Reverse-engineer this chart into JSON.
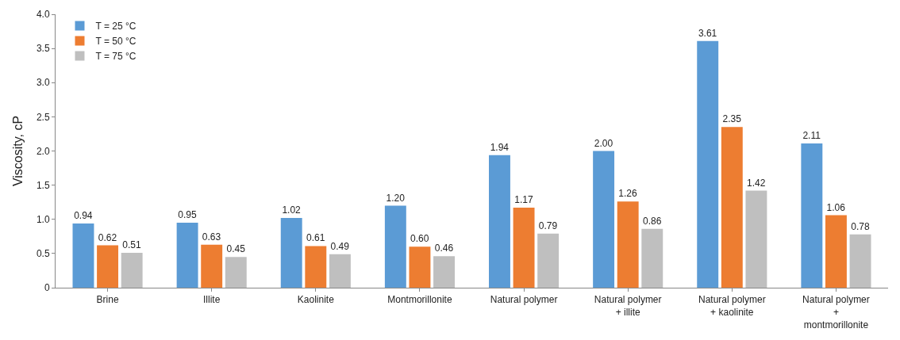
{
  "chart_data": {
    "type": "bar",
    "ylabel": "Viscosity, cP",
    "categories": [
      "Brine",
      "Illite",
      "Kaolinite",
      "Montmorillonite",
      "Natural polymer",
      "Natural polymer + illite",
      "Natural polymer + kaolinite",
      "Natural polymer + montmorillonite"
    ],
    "series": [
      {
        "name": "T = 25 °C",
        "color": "#5b9bd5",
        "values": [
          0.94,
          0.95,
          1.02,
          1.2,
          1.94,
          2.0,
          3.61,
          2.11
        ],
        "value_labels": [
          "0.94",
          "0.95",
          "1.02",
          "1.20",
          "1.94",
          "2.00",
          "3.61",
          "2.11"
        ]
      },
      {
        "name": "T = 50 °C",
        "color": "#ed7d31",
        "values": [
          0.62,
          0.63,
          0.61,
          0.6,
          1.17,
          1.26,
          2.35,
          1.06
        ],
        "value_labels": [
          "0.62",
          "0.63",
          "0.61",
          "0.60",
          "1.17",
          "1.26",
          "2.35",
          "1.06"
        ]
      },
      {
        "name": "T = 75 °C",
        "color": "#bfbfbf",
        "values": [
          0.51,
          0.45,
          0.49,
          0.46,
          0.79,
          0.86,
          1.42,
          0.78
        ],
        "value_labels": [
          "0.51",
          "0.45",
          "0.49",
          "0.46",
          "0.79",
          "0.86",
          "1.42",
          "0.78"
        ]
      }
    ],
    "ylim": [
      0,
      4
    ],
    "yticks": [
      0,
      {
        "value": 0.5,
        "label": "0.5"
      },
      {
        "value": 1,
        "label": "1.0"
      },
      {
        "value": 1.5,
        "label": "1.5"
      },
      {
        "value": 2,
        "label": "2.0"
      },
      {
        "value": 2.5,
        "label": "2.5"
      },
      {
        "value": 3,
        "label": "3.0"
      },
      {
        "value": 3.5,
        "label": "3.5"
      },
      {
        "value": 4,
        "label": "4.0"
      }
    ],
    "grid": false,
    "legend": "top left"
  }
}
